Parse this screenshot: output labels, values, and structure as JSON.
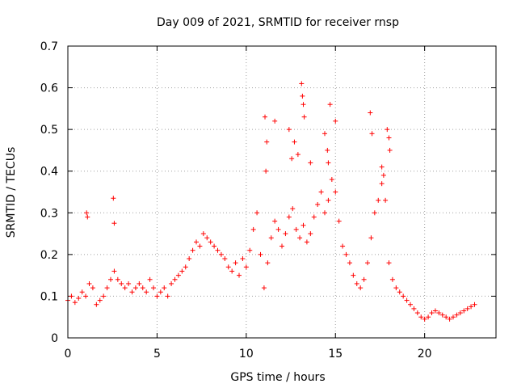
{
  "chart_data": {
    "type": "scatter",
    "title": "Day 009 of 2021, SRMTID for receiver rnsp",
    "xlabel": "GPS time / hours",
    "ylabel": "SRMTID / TECUs",
    "xlim": [
      0,
      24
    ],
    "ylim": [
      0,
      0.7
    ],
    "xticks": [
      0,
      5,
      10,
      15,
      20
    ],
    "xtick_labels": [
      "0",
      "5",
      "10",
      "15",
      "20"
    ],
    "yticks": [
      0,
      0.1,
      0.2,
      0.3,
      0.4,
      0.5,
      0.6,
      0.7
    ],
    "ytick_labels": [
      "0",
      "0.1",
      "0.2",
      "0.3",
      "0.4",
      "0.5",
      "0.6",
      "0.7"
    ],
    "grid": true,
    "marker": "+",
    "color": "#ff0000",
    "series": [
      {
        "name": "SRMTID",
        "x": [
          0.0,
          0.2,
          0.4,
          0.6,
          0.8,
          1.0,
          1.2,
          1.4,
          1.6,
          1.8,
          2.0,
          2.2,
          2.4,
          2.6,
          2.8,
          3.0,
          3.2,
          3.4,
          3.6,
          3.8,
          4.0,
          4.2,
          4.4,
          4.6,
          4.8,
          5.0,
          5.2,
          5.4,
          5.6,
          5.8,
          6.0,
          6.2,
          6.4,
          6.6,
          6.8,
          7.0,
          7.2,
          7.4,
          7.6,
          7.8,
          8.0,
          8.2,
          8.4,
          8.6,
          8.8,
          9.0,
          9.2,
          9.4,
          9.6,
          9.8,
          10.0,
          10.2,
          10.4,
          10.6,
          10.8,
          11.0,
          11.2,
          11.4,
          11.6,
          11.8,
          12.0,
          12.2,
          12.4,
          12.6,
          12.8,
          13.0,
          13.2,
          13.4,
          13.6,
          13.8,
          14.0,
          14.2,
          14.4,
          14.6,
          14.8,
          15.0,
          15.2,
          15.4,
          15.6,
          15.8,
          16.0,
          16.2,
          16.4,
          16.6,
          16.8,
          17.0,
          17.2,
          17.4,
          17.6,
          17.8,
          18.0,
          18.2,
          18.4,
          18.6,
          18.8,
          19.0,
          19.2,
          19.4,
          19.6,
          19.8,
          20.0,
          20.2,
          20.4,
          20.6,
          20.8,
          21.0,
          21.2,
          21.4,
          21.6,
          21.8,
          22.0,
          22.2,
          22.4,
          22.6,
          22.8,
          1.05,
          1.1,
          2.55,
          2.6,
          11.05,
          11.15,
          11.6,
          12.4,
          12.55,
          12.7,
          13.1,
          13.15,
          13.2,
          13.25,
          14.4,
          14.55,
          14.7,
          15.0,
          16.95,
          17.05,
          17.9,
          18.0,
          18.05,
          11.1,
          12.9,
          13.6,
          14.6,
          17.6,
          17.7
        ],
        "y": [
          0.09,
          0.1,
          0.085,
          0.095,
          0.11,
          0.1,
          0.13,
          0.12,
          0.08,
          0.09,
          0.1,
          0.12,
          0.14,
          0.16,
          0.14,
          0.13,
          0.12,
          0.13,
          0.11,
          0.12,
          0.13,
          0.12,
          0.11,
          0.14,
          0.12,
          0.1,
          0.11,
          0.12,
          0.1,
          0.13,
          0.14,
          0.15,
          0.16,
          0.17,
          0.19,
          0.21,
          0.23,
          0.22,
          0.25,
          0.24,
          0.23,
          0.22,
          0.21,
          0.2,
          0.19,
          0.17,
          0.16,
          0.18,
          0.15,
          0.19,
          0.17,
          0.21,
          0.26,
          0.3,
          0.2,
          0.12,
          0.18,
          0.24,
          0.28,
          0.26,
          0.22,
          0.25,
          0.29,
          0.31,
          0.26,
          0.24,
          0.27,
          0.23,
          0.25,
          0.29,
          0.32,
          0.35,
          0.3,
          0.33,
          0.38,
          0.35,
          0.28,
          0.22,
          0.2,
          0.18,
          0.15,
          0.13,
          0.12,
          0.14,
          0.18,
          0.24,
          0.3,
          0.33,
          0.37,
          0.33,
          0.18,
          0.14,
          0.12,
          0.11,
          0.1,
          0.09,
          0.08,
          0.07,
          0.06,
          0.05,
          0.045,
          0.05,
          0.06,
          0.065,
          0.06,
          0.055,
          0.05,
          0.045,
          0.05,
          0.055,
          0.06,
          0.065,
          0.07,
          0.075,
          0.08,
          0.3,
          0.29,
          0.335,
          0.275,
          0.53,
          0.47,
          0.52,
          0.5,
          0.43,
          0.47,
          0.61,
          0.58,
          0.56,
          0.53,
          0.49,
          0.45,
          0.56,
          0.52,
          0.54,
          0.49,
          0.5,
          0.48,
          0.45,
          0.4,
          0.44,
          0.42,
          0.42,
          0.41,
          0.39
        ]
      }
    ]
  }
}
